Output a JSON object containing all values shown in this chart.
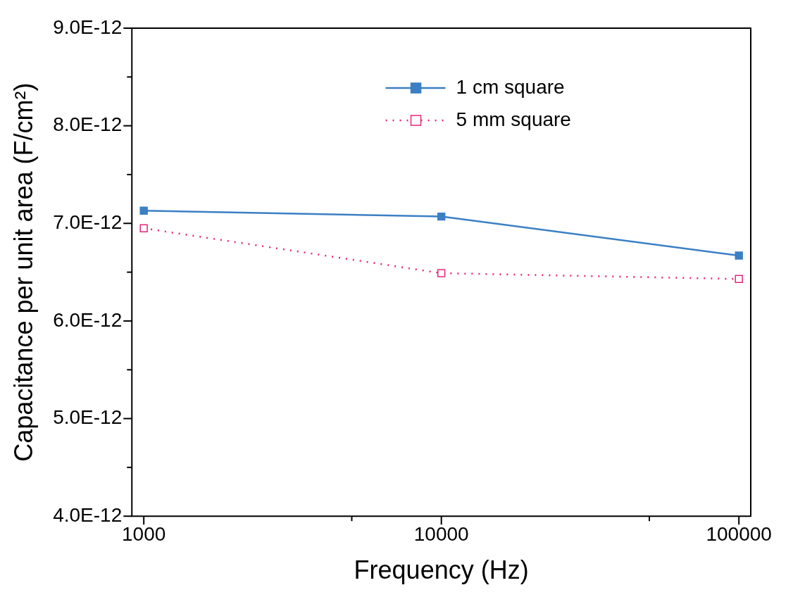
{
  "chart_data": {
    "type": "line",
    "xlabel": "Frequency (Hz)",
    "ylabel": "Capacitance per unit area (F/cm²)",
    "log": "x",
    "x": [
      1000,
      10000,
      100000
    ],
    "xlim": [
      912,
      109600
    ],
    "xticks": [
      1000,
      {
        "value": 5000,
        "label": null
      },
      10000,
      {
        "value": 50000,
        "label": null
      },
      100000
    ],
    "ylim": [
      4e-12,
      9e-12
    ],
    "yticks": [
      {
        "value": 4e-12,
        "label": "4.0E-12"
      },
      {
        "value": 4.5e-12,
        "label": null
      },
      {
        "value": 5e-12,
        "label": "5.0E-12"
      },
      {
        "value": 5.5e-12,
        "label": null
      },
      {
        "value": 6e-12,
        "label": "6.0E-12"
      },
      {
        "value": 6.5e-12,
        "label": null
      },
      {
        "value": 7e-12,
        "label": "7.0E-12"
      },
      {
        "value": 7.5e-12,
        "label": null
      },
      {
        "value": 8e-12,
        "label": "8.0E-12"
      },
      {
        "value": 8.5e-12,
        "label": null
      },
      {
        "value": 9e-12,
        "label": "9.0E-12"
      }
    ],
    "marker": "square",
    "legend": "top right",
    "grid": false,
    "series": [
      {
        "name": "1 cm square",
        "color": "#3b7fc4",
        "line_style": "solid",
        "values": [
          7.13e-12,
          7.07e-12,
          6.67e-12
        ]
      },
      {
        "name": "5 mm square",
        "color": "#e8247a",
        "line_style": "dotted",
        "values": [
          6.95e-12,
          6.49e-12,
          6.43e-12
        ]
      }
    ]
  }
}
